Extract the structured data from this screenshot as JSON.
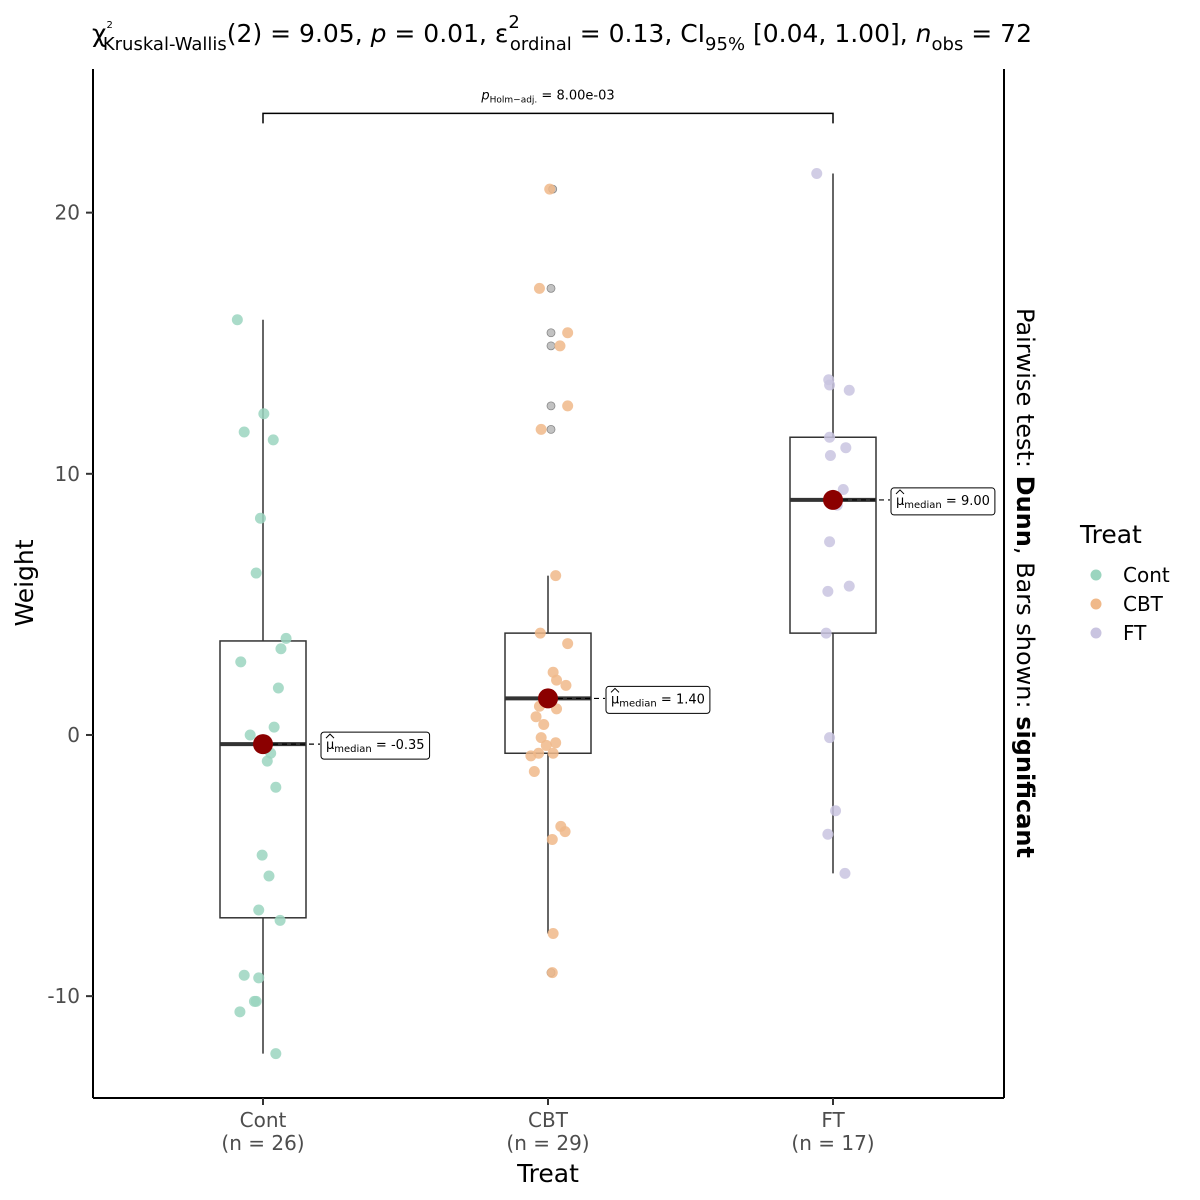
{
  "chart_data": {
    "type": "box",
    "title": {
      "chi": "χ",
      "chi_sup": "2",
      "chi_sub": "Kruskal-Wallis",
      "stat": "(2) = 9.05, ",
      "p_sym": "p",
      "p_val": " = 0.01, ",
      "eps": "ε",
      "eps_sup": "2",
      "eps_sub": "ordinal",
      "eps_val": " = 0.13, CI",
      "ci_sub": "95%",
      "ci_val": " [0.04, 1.00], ",
      "n_sym": "n",
      "n_sub": "obs",
      "n_val": " = 72"
    },
    "xlabel": "Treat",
    "ylabel": "Weight",
    "ylim": [
      -13.9,
      25.5
    ],
    "yticks": [
      -10,
      0,
      10,
      20
    ],
    "ytick_labels": [
      "-10",
      "0",
      "10",
      "20"
    ],
    "grid": false,
    "legend": {
      "title": "Treat",
      "position": "right"
    },
    "side_label": {
      "prefix": "Pairwise test: ",
      "bold1": "Dunn",
      "middle": ", Bars shown: ",
      "bold2": "significant"
    },
    "pairwise": {
      "from": "Cont",
      "to": "FT",
      "p_label": "p",
      "p_sub": "Holm−adj.",
      "p_value": " = 8.00e-03",
      "y": 23.8
    },
    "median_label": {
      "mu": "μ",
      "sub": "median"
    },
    "groups": [
      {
        "name": "Cont",
        "n_label": "(n = 26)",
        "color": "#9bd5bf",
        "box": {
          "q1": -7.0,
          "median": -0.35,
          "q3": 3.6,
          "whisker_low": -12.2,
          "whisker_high": 15.9
        },
        "median": -0.35,
        "median_text": " = -0.35",
        "points": [
          [
            -0.3,
            15.9
          ],
          [
            0.01,
            12.3
          ],
          [
            -0.22,
            11.6
          ],
          [
            0.12,
            11.3
          ],
          [
            -0.03,
            8.3
          ],
          [
            -0.08,
            6.2
          ],
          [
            0.27,
            3.7
          ],
          [
            0.21,
            3.3
          ],
          [
            -0.26,
            2.8
          ],
          [
            0.18,
            1.8
          ],
          [
            0.13,
            0.3
          ],
          [
            -0.15,
            0.0
          ],
          [
            0.03,
            -0.3
          ],
          [
            0.09,
            -0.7
          ],
          [
            0.05,
            -1.0
          ],
          [
            0.15,
            -2.0
          ],
          [
            -0.01,
            -4.6
          ],
          [
            0.07,
            -5.4
          ],
          [
            -0.05,
            -6.7
          ],
          [
            0.2,
            -7.1
          ],
          [
            -0.22,
            -9.2
          ],
          [
            -0.05,
            -9.3
          ],
          [
            -0.08,
            -10.2
          ],
          [
            -0.27,
            -10.6
          ],
          [
            0.15,
            -12.2
          ],
          [
            -0.1,
            -10.2
          ]
        ]
      },
      {
        "name": "CBT",
        "n_label": "(n = 29)",
        "color": "#f0b98a",
        "box": {
          "q1": -0.7,
          "median": 1.4,
          "q3": 3.9,
          "whisker_low": -7.6,
          "whisker_high": 6.1
        },
        "median": 1.4,
        "median_text": " = 1.40",
        "points": [
          [
            0.02,
            20.9
          ],
          [
            -0.1,
            17.1
          ],
          [
            0.23,
            15.4
          ],
          [
            0.14,
            14.9
          ],
          [
            0.23,
            12.6
          ],
          [
            -0.08,
            11.7
          ],
          [
            0.09,
            6.1
          ],
          [
            -0.09,
            3.9
          ],
          [
            0.23,
            3.5
          ],
          [
            0.06,
            2.4
          ],
          [
            0.1,
            2.1
          ],
          [
            0.21,
            1.9
          ],
          [
            0.0,
            1.5
          ],
          [
            -0.1,
            1.1
          ],
          [
            -0.14,
            0.7
          ],
          [
            -0.08,
            -0.1
          ],
          [
            0.09,
            -0.3
          ],
          [
            0.06,
            -0.7
          ],
          [
            -0.11,
            -0.7
          ],
          [
            -0.2,
            -0.8
          ],
          [
            -0.16,
            -1.4
          ],
          [
            0.15,
            -3.5
          ],
          [
            0.2,
            -3.7
          ],
          [
            0.05,
            -4.0
          ],
          [
            0.06,
            -7.6
          ],
          [
            0.05,
            -9.1
          ],
          [
            -0.05,
            0.4
          ],
          [
            0.1,
            1.0
          ],
          [
            -0.02,
            -0.4
          ]
        ],
        "grey_points": [
          [
            0.02,
            20.9
          ],
          [
            0.0,
            17.1
          ],
          [
            0.0,
            15.4
          ],
          [
            0.0,
            14.9
          ],
          [
            0.0,
            12.6
          ],
          [
            0.0,
            11.7
          ],
          [
            0.0,
            -9.1
          ]
        ]
      },
      {
        "name": "FT",
        "n_label": "(n = 17)",
        "color": "#c9c4e0",
        "box": {
          "q1": 3.9,
          "median": 9.0,
          "q3": 11.4,
          "whisker_low": -5.3,
          "whisker_high": 21.5
        },
        "median": 9.0,
        "median_text": " = 9.00",
        "points": [
          [
            -0.19,
            21.5
          ],
          [
            -0.05,
            13.6
          ],
          [
            0.19,
            13.2
          ],
          [
            -0.04,
            13.4
          ],
          [
            -0.04,
            11.4
          ],
          [
            0.15,
            11.0
          ],
          [
            -0.03,
            10.7
          ],
          [
            0.12,
            9.4
          ],
          [
            -0.04,
            7.4
          ],
          [
            0.19,
            5.7
          ],
          [
            -0.06,
            5.5
          ],
          [
            -0.08,
            3.9
          ],
          [
            -0.04,
            -0.1
          ],
          [
            0.03,
            -2.9
          ],
          [
            -0.06,
            -3.8
          ],
          [
            0.14,
            -5.3
          ],
          [
            0.05,
            8.8
          ]
        ]
      }
    ]
  }
}
